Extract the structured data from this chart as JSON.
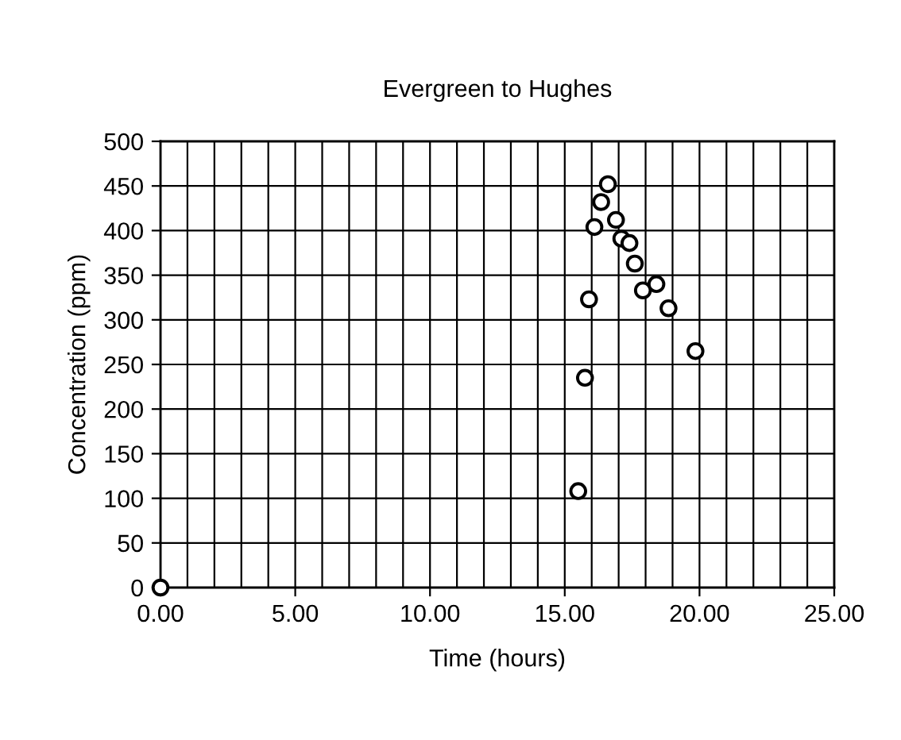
{
  "chart_data": {
    "type": "scatter",
    "title": "Evergreen to Hughes",
    "xlabel": "Time (hours)",
    "ylabel": "Concentration (ppm)",
    "x": [
      0,
      15.5,
      15.75,
      15.9,
      16.1,
      16.35,
      16.6,
      16.9,
      17.1,
      17.4,
      17.6,
      17.9,
      18.4,
      18.85,
      19.85
    ],
    "values": [
      0,
      108,
      235,
      323,
      404,
      432,
      452,
      412,
      391,
      386,
      363,
      333,
      340,
      313,
      265
    ],
    "color": "#000000",
    "marker": "circle",
    "xlim": [
      0,
      25
    ],
    "xticks": [
      {
        "value": 0,
        "label": "0.00"
      },
      {
        "value": 5,
        "label": "5.00"
      },
      {
        "value": 10,
        "label": "10.00"
      },
      {
        "value": 15,
        "label": "15.00"
      },
      {
        "value": 20,
        "label": "20.00"
      },
      {
        "value": 25,
        "label": "25.00"
      }
    ],
    "ylim": [
      0,
      500
    ],
    "yticks": [
      0,
      50,
      100,
      150,
      200,
      250,
      300,
      350,
      400,
      450,
      500
    ],
    "grid": true
  }
}
